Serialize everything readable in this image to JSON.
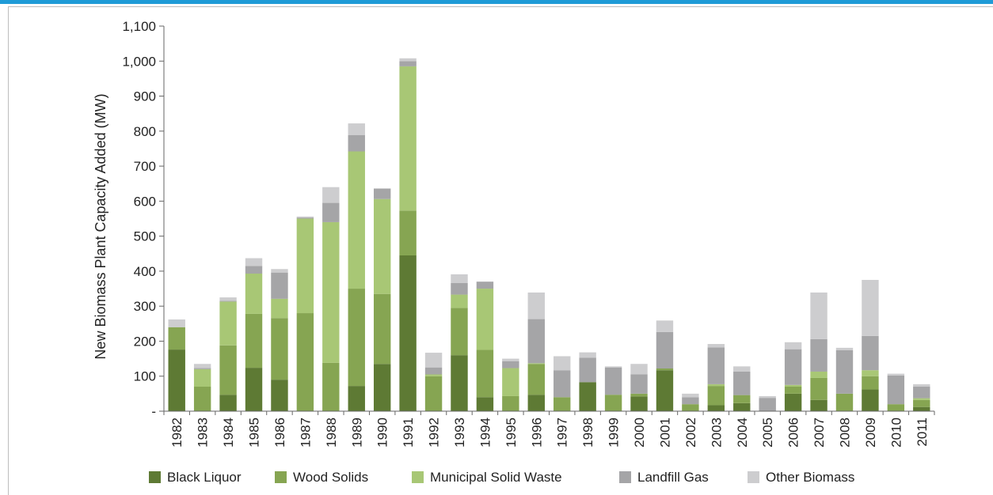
{
  "chart_data": {
    "type": "bar",
    "stacked": true,
    "title": "",
    "xlabel": "",
    "ylabel": "New Biomass Plant Capacity Added (MW)",
    "ylim": [
      0,
      1100
    ],
    "yticks": [
      0,
      100,
      200,
      300,
      400,
      500,
      600,
      700,
      800,
      900,
      1000,
      1100
    ],
    "ytick_labels": [
      "-",
      "100",
      "200",
      "300",
      "400",
      "500",
      "600",
      "700",
      "800",
      "900",
      "1,000",
      "1,100"
    ],
    "grid": false,
    "legend_position": "bottom",
    "categories": [
      "1982",
      "1983",
      "1984",
      "1985",
      "1986",
      "1987",
      "1988",
      "1989",
      "1990",
      "1991",
      "1992",
      "1993",
      "1994",
      "1995",
      "1996",
      "1997",
      "1998",
      "1999",
      "2000",
      "2001",
      "2002",
      "2003",
      "2004",
      "2005",
      "2006",
      "2007",
      "2008",
      "2009",
      "2010",
      "2011"
    ],
    "series": [
      {
        "name": "Black Liquor",
        "color": "#5e7a34",
        "values": [
          176,
          0,
          47,
          124,
          90,
          0,
          0,
          72,
          135,
          445,
          0,
          160,
          40,
          0,
          47,
          0,
          83,
          0,
          42,
          117,
          0,
          17,
          23,
          0,
          50,
          32,
          0,
          62,
          0,
          12
        ]
      },
      {
        "name": "Wood Solids",
        "color": "#86a552",
        "values": [
          64,
          70,
          141,
          154,
          176,
          280,
          138,
          278,
          200,
          128,
          100,
          135,
          135,
          43,
          88,
          40,
          0,
          47,
          8,
          5,
          20,
          55,
          23,
          0,
          20,
          63,
          50,
          38,
          20,
          20
        ]
      },
      {
        "name": "Municipal Solid Waste",
        "color": "#a8c775",
        "values": [
          0,
          50,
          125,
          115,
          55,
          270,
          402,
          392,
          271,
          412,
          5,
          38,
          175,
          80,
          2,
          0,
          0,
          0,
          0,
          0,
          0,
          5,
          0,
          0,
          5,
          18,
          0,
          17,
          0,
          5
        ]
      },
      {
        "name": "Landfill Gas",
        "color": "#a5a5a7",
        "values": [
          0,
          3,
          2,
          22,
          75,
          3,
          55,
          47,
          30,
          15,
          20,
          33,
          20,
          20,
          126,
          77,
          70,
          78,
          55,
          104,
          20,
          105,
          67,
          38,
          102,
          93,
          124,
          98,
          82,
          33
        ]
      },
      {
        "name": "Other Biomass",
        "color": "#cdcdcf",
        "values": [
          22,
          12,
          10,
          22,
          10,
          3,
          45,
          33,
          0,
          8,
          42,
          25,
          0,
          7,
          76,
          40,
          15,
          3,
          30,
          33,
          10,
          10,
          15,
          5,
          20,
          133,
          7,
          160,
          5,
          7
        ]
      }
    ]
  }
}
